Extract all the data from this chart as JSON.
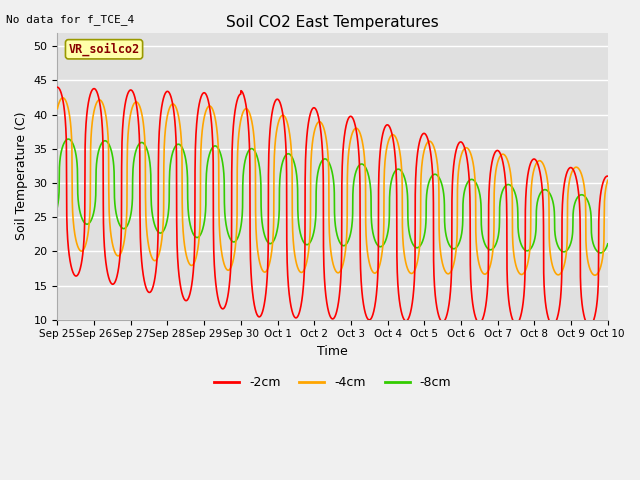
{
  "title": "Soil CO2 East Temperatures",
  "top_left_text": "No data for f_TCE_4",
  "xlabel": "Time",
  "ylabel": "Soil Temperature (C)",
  "ylim": [
    10,
    52
  ],
  "yticks": [
    10,
    15,
    20,
    25,
    30,
    35,
    40,
    45,
    50
  ],
  "plot_bg_color": "#e0e0e0",
  "fig_bg_color": "#f0f0f0",
  "line_colors": {
    "-2cm": "#ff0000",
    "-4cm": "#ffa500",
    "-8cm": "#33cc00"
  },
  "legend_label": "VR_soilco2",
  "legend_box_color": "#ffffaa",
  "legend_box_edge": "#999900",
  "x_tick_labels": [
    "Sep 25",
    "Sep 26",
    "Sep 27",
    "Sep 28",
    "Sep 29",
    "Sep 30",
    "Oct 1",
    "Oct 2",
    "Oct 3",
    "Oct 4",
    "Oct 5",
    "Oct 6",
    "Oct 7",
    "Oct 8",
    "Oct 9",
    "Oct 10"
  ],
  "num_points": 3000
}
